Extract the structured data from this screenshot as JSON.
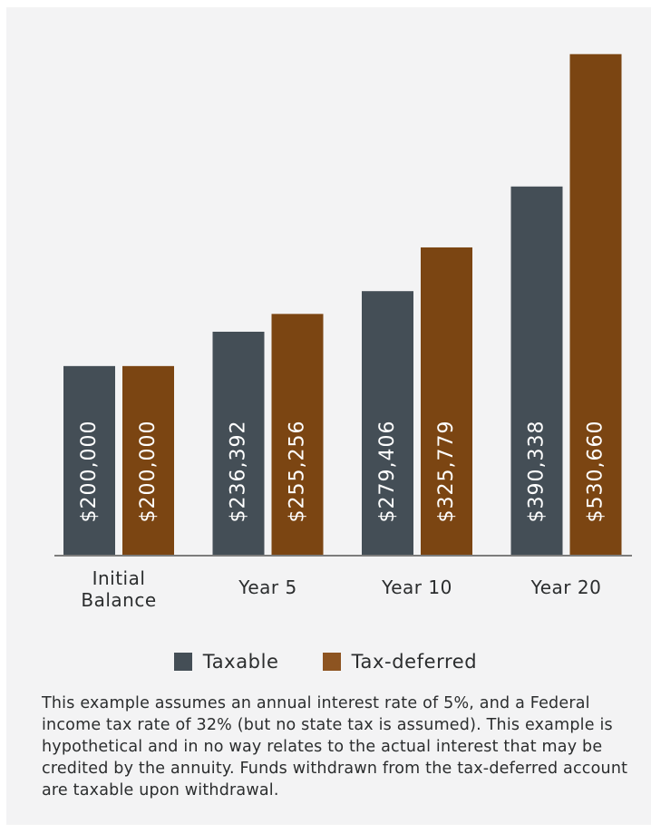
{
  "chart_data": {
    "type": "bar",
    "categories": [
      "Initial\nBalance",
      "Year 5",
      "Year 10",
      "Year 20"
    ],
    "series": [
      {
        "name": "Taxable",
        "values": [
          200000,
          236392,
          279406,
          390338
        ],
        "labels": [
          "$200,000",
          "$236,392",
          "$279,406",
          "$390,338"
        ],
        "color": "#444e56"
      },
      {
        "name": "Tax-deferred",
        "values": [
          200000,
          255256,
          325779,
          530660
        ],
        "labels": [
          "$200,000",
          "$255,256",
          "$325,779",
          "$530,660"
        ],
        "color": "#7b4512"
      }
    ],
    "ylim": [
      0,
      540000
    ],
    "grid": false,
    "legend": "bottom",
    "label_color": "#ffffff",
    "axis_color": "#555555",
    "legend_swatch_colors": [
      "#444e56",
      "#8d5421"
    ]
  },
  "footnote": "This example assumes an annual interest rate of 5%, and a Federal income tax rate of 32% (but no state tax is assumed). This example is hypothetical and in no way relates to the actual interest that may be credited by the annuity. Funds withdrawn from the tax-deferred account are taxable upon withdrawal."
}
